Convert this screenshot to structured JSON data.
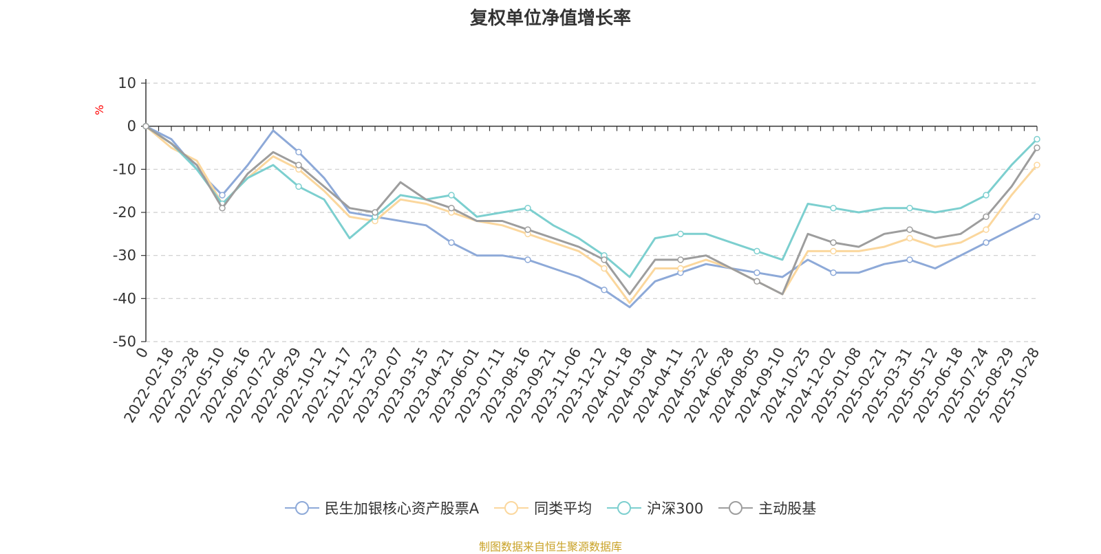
{
  "source": "制图数据来自恒生聚源数据库",
  "chart_data": {
    "type": "line",
    "title": "复权单位净值增长率",
    "ylabel": "%",
    "ylim": [
      -50,
      10
    ],
    "yticks": [
      10,
      0,
      -10,
      -20,
      -30,
      -40,
      -50
    ],
    "x_tick_labels": [
      "0",
      "2022-02-18",
      "2022-03-28",
      "2022-05-10",
      "2022-06-16",
      "2022-07-22",
      "2022-08-29",
      "2022-10-12",
      "2022-11-17",
      "2022-12-23",
      "2023-02-07",
      "2023-03-15",
      "2023-04-21",
      "2023-06-01",
      "2023-07-11",
      "2023-08-16",
      "2023-09-21",
      "2023-11-06",
      "2023-12-12",
      "2024-01-18",
      "2024-03-04",
      "2024-04-11",
      "2024-05-22",
      "2024-06-28",
      "2024-08-05",
      "2024-09-10",
      "2024-10-25",
      "2024-12-02",
      "2025-01-08",
      "2025-02-21",
      "2025-03-31",
      "2025-05-12",
      "2025-06-18",
      "2025-07-24",
      "2025-08-29",
      "2025-10-28"
    ],
    "x_positions": [
      0,
      1,
      2,
      3,
      4,
      5,
      6,
      7,
      8,
      9,
      10,
      11,
      12,
      13,
      14,
      15,
      16,
      17,
      18,
      19,
      20,
      21,
      22,
      23,
      24,
      25,
      26,
      27,
      28,
      29,
      30,
      31,
      32,
      33,
      34,
      35
    ],
    "series": [
      {
        "name": "民生加银核心资产股票A",
        "color": "#8da9d8",
        "values": [
          0,
          -3,
          -10,
          -16,
          -9,
          -1,
          -6,
          -12,
          -20,
          -21,
          -22,
          -23,
          -27,
          -30,
          -30,
          -31,
          -33,
          -35,
          -38,
          -42,
          -36,
          -34,
          -32,
          -33,
          -34,
          -35,
          -31,
          -34,
          -34,
          -32,
          -31,
          -33,
          -30,
          -27,
          -24,
          -21
        ]
      },
      {
        "name": "同类平均",
        "color": "#fbd79d",
        "values": [
          0,
          -5,
          -8,
          -18,
          -12,
          -7,
          -10,
          -15,
          -21,
          -22,
          -17,
          -18,
          -20,
          -22,
          -23,
          -25,
          -27,
          -29,
          -33,
          -41,
          -33,
          -33,
          -31,
          -33,
          -36,
          -39,
          -29,
          -29,
          -29,
          -28,
          -26,
          -28,
          -27,
          -24,
          -16,
          -9
        ]
      },
      {
        "name": "沪深300",
        "color": "#7ccfcf",
        "values": [
          0,
          -4,
          -10,
          -18,
          -12,
          -9,
          -14,
          -17,
          -26,
          -21,
          -16,
          -17,
          -16,
          -21,
          -20,
          -19,
          -23,
          -26,
          -30,
          -35,
          -26,
          -25,
          -25,
          -27,
          -29,
          -31,
          -18,
          -19,
          -20,
          -19,
          -19,
          -20,
          -19,
          -16,
          -9,
          -3
        ]
      },
      {
        "name": "主动股基",
        "color": "#9d9d9d",
        "values": [
          0,
          -4,
          -9,
          -19,
          -11,
          -6,
          -9,
          -14,
          -19,
          -20,
          -13,
          -17,
          -19,
          -22,
          -22,
          -24,
          -26,
          -28,
          -31,
          -39,
          -31,
          -31,
          -30,
          -33,
          -36,
          -39,
          -25,
          -27,
          -28,
          -25,
          -24,
          -26,
          -25,
          -21,
          -14,
          -5
        ]
      }
    ]
  }
}
